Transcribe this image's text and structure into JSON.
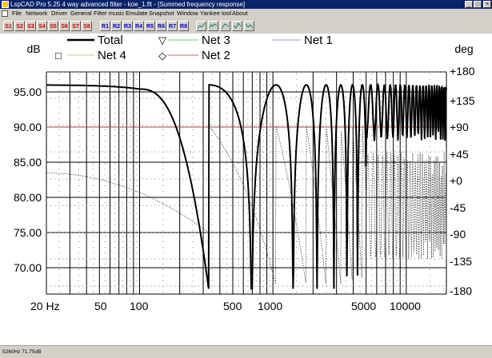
{
  "window": {
    "title": "LspCAD Pro 5.25 4 way advanced filter - koe_1.flt - [Summed frequency response]",
    "minimize": "_",
    "maximize": "□",
    "close": "×"
  },
  "menu": [
    "File",
    "Network",
    "Driver",
    "General",
    "Filter music",
    "Emulate",
    "Snapshot",
    "Window",
    "Yankee tool",
    "About"
  ],
  "toolbar": {
    "s_buttons": [
      "S1",
      "S2",
      "S3",
      "S4",
      "S5",
      "S6",
      "S7",
      "S8"
    ],
    "r_buttons": [
      "R1",
      "R2",
      "R3",
      "R4",
      "R5",
      "R6",
      "R7",
      "R8"
    ]
  },
  "chart_data": {
    "type": "line",
    "ylabel_left": "dB",
    "ylabel_right": "deg",
    "y_ticks_left": [
      "95.00",
      "90.00",
      "85.00",
      "80.00",
      "75.00",
      "70.00"
    ],
    "y_ticks_right": [
      "+180",
      "+135",
      "+90",
      "+45",
      "+0",
      "-45",
      "-90",
      "-135",
      "-180"
    ],
    "x_ticks": [
      "20 Hz",
      "50",
      "100",
      "500",
      "1000",
      "5000",
      "10000"
    ],
    "xlim": [
      20,
      20000
    ],
    "ylim_left": [
      67,
      99
    ],
    "x_scale": "log",
    "grid": true,
    "legend": [
      {
        "name": "Total",
        "color": "#000000",
        "marker": ""
      },
      {
        "name": "Net 3",
        "color": "#66cc66",
        "marker": "▽"
      },
      {
        "name": "Net 1",
        "color": "#9999cc",
        "marker": ""
      },
      {
        "name": "Net 4",
        "color": "#cccc66",
        "marker": "□"
      },
      {
        "name": "Net 2",
        "color": "#cc6666",
        "marker": "◇"
      }
    ],
    "reference_level_db": 90,
    "series": [
      {
        "name": "Total",
        "x": [
          20,
          50,
          100,
          150,
          200,
          250,
          300,
          330,
          400,
          500,
          600,
          700,
          800,
          900,
          1000,
          1100,
          1300,
          1500,
          1700,
          2000,
          2500,
          3000,
          4000,
          5000,
          7000,
          10000,
          20000
        ],
        "y": [
          96,
          95.8,
          95.2,
          93,
          88,
          80,
          70,
          67,
          84,
          93,
          95.8,
          95.5,
          93,
          85,
          70,
          88,
          96,
          82,
          69,
          96,
          95,
          72,
          95,
          96,
          95,
          95,
          94
        ]
      }
    ]
  },
  "status": {
    "text": "5260Hz  71.75dB"
  }
}
